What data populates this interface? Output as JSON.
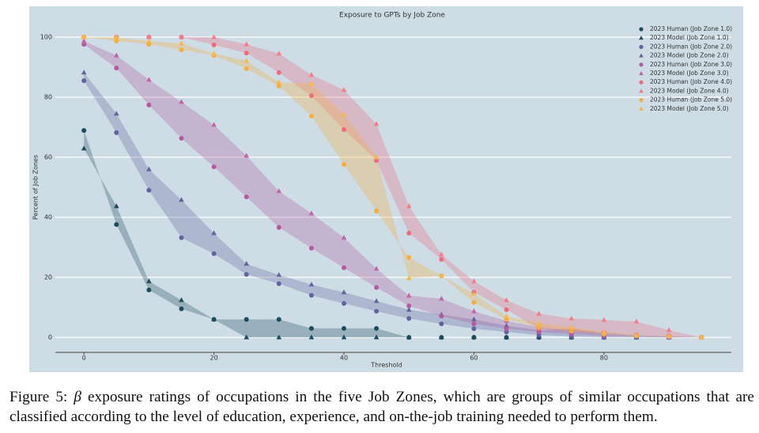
{
  "chart_data": {
    "type": "scatter",
    "title": "Exposure to GPTs by Job Zone",
    "x_label": "Threshold",
    "y_label": "Percent of Job Zones",
    "x": [
      0,
      5,
      10,
      15,
      20,
      25,
      30,
      35,
      40,
      45,
      50,
      55,
      60,
      65,
      70,
      75,
      80,
      85,
      90,
      95
    ],
    "xlim": [
      -4.4,
      99.6
    ],
    "ylim": [
      -5,
      105
    ],
    "xticks": [
      0,
      20,
      40,
      60,
      80
    ],
    "yticks": [
      0,
      20,
      40,
      60,
      80,
      100
    ],
    "grid": true,
    "legend": "upper right",
    "fill_between_pairs": true,
    "series": [
      {
        "name": "2023 Human (Job Zone 1.0)",
        "color": "#1d4b5e",
        "marker": "circle",
        "values": [
          68.9,
          37.6,
          15.8,
          9.5,
          6,
          6,
          6,
          3,
          3,
          3,
          0,
          0,
          0,
          0,
          0,
          0,
          0,
          0,
          0,
          0
        ]
      },
      {
        "name": "2023 Model (Job Zone 1.0)",
        "color": "#1d4b5e",
        "marker": "triangle",
        "values": [
          62.9,
          43.7,
          18.7,
          12.4,
          6,
          0,
          0,
          0,
          0,
          0,
          0,
          0,
          0,
          0,
          0,
          0,
          0,
          0,
          0,
          0
        ]
      },
      {
        "name": "2023 Human (Job Zone 2.0)",
        "color": "#63649e",
        "marker": "circle",
        "values": [
          85.5,
          68.2,
          49,
          33.2,
          27.9,
          21,
          17.9,
          14,
          11.3,
          8.7,
          6.3,
          4.5,
          2.9,
          1.8,
          0.8,
          0.3,
          0,
          0,
          0,
          0
        ]
      },
      {
        "name": "2023 Model (Job Zone 2.0)",
        "color": "#63649e",
        "marker": "triangle",
        "values": [
          88.2,
          74.5,
          56,
          45.8,
          34.7,
          24.5,
          20.8,
          17.6,
          15,
          12.1,
          9.2,
          7.6,
          6,
          3.9,
          2.4,
          2.9,
          1.3,
          0.5,
          0.3,
          0
        ]
      },
      {
        "name": "2023 Human (Job Zone 3.0)",
        "color": "#b45aa0",
        "marker": "circle",
        "values": [
          97.6,
          89.7,
          77.4,
          66.3,
          56.8,
          46.8,
          36.6,
          29.7,
          23.2,
          16.6,
          10.5,
          7.1,
          4.5,
          2.9,
          1.8,
          1.1,
          0.5,
          0.3,
          0,
          0
        ]
      },
      {
        "name": "2023 Model (Job Zone 3.0)",
        "color": "#c464a8",
        "marker": "triangle",
        "values": [
          98.7,
          93.9,
          85.8,
          78.4,
          70.8,
          60.5,
          48.7,
          41.3,
          33.2,
          22.9,
          13.9,
          12.9,
          8.7,
          5.5,
          3.4,
          2.4,
          1.8,
          0.8,
          0.5,
          0
        ]
      },
      {
        "name": "2023 Human (Job Zone 4.0)",
        "color": "#ef6a7a",
        "marker": "circle",
        "values": [
          100,
          100,
          100,
          100,
          97.4,
          94.7,
          88.2,
          80.5,
          69.2,
          58.9,
          34.7,
          26,
          15,
          9.2,
          2.9,
          2.1,
          1.6,
          0.8,
          0.5,
          0
        ]
      },
      {
        "name": "2023 Model (Job Zone 4.0)",
        "color": "#f27d89",
        "marker": "triangle",
        "values": [
          100,
          100,
          100,
          100,
          100,
          97.6,
          94.5,
          87.4,
          82.4,
          71.1,
          43.7,
          27.6,
          18.7,
          12.4,
          7.9,
          6.3,
          5.8,
          5.3,
          2.4,
          0
        ]
      },
      {
        "name": "2023 Human (Job Zone 5.0)",
        "color": "#f5ad3c",
        "marker": "circle",
        "values": [
          100,
          98.7,
          97.6,
          95.8,
          93.9,
          89.5,
          83.7,
          73.7,
          57.6,
          42.1,
          26.6,
          20.5,
          11.6,
          6,
          3.4,
          2.1,
          1.1,
          0.5,
          0.3,
          0
        ]
      },
      {
        "name": "2023 Model (Job Zone 5.0)",
        "color": "#f7b84a",
        "marker": "triangle",
        "values": [
          100,
          100,
          98.7,
          97.9,
          94.5,
          92.1,
          85,
          84.5,
          74.2,
          60,
          19.7,
          20.5,
          14.5,
          7.1,
          4.7,
          3.4,
          1.8,
          0.8,
          0.3,
          0
        ]
      }
    ]
  },
  "caption": {
    "label": "Figure 5:",
    "symbol": "β",
    "text": "exposure ratings of occupations in the five Job Zones, which are groups of similar occupations that are classified according to the level of education, experience, and on-the-job training needed to perform them."
  }
}
